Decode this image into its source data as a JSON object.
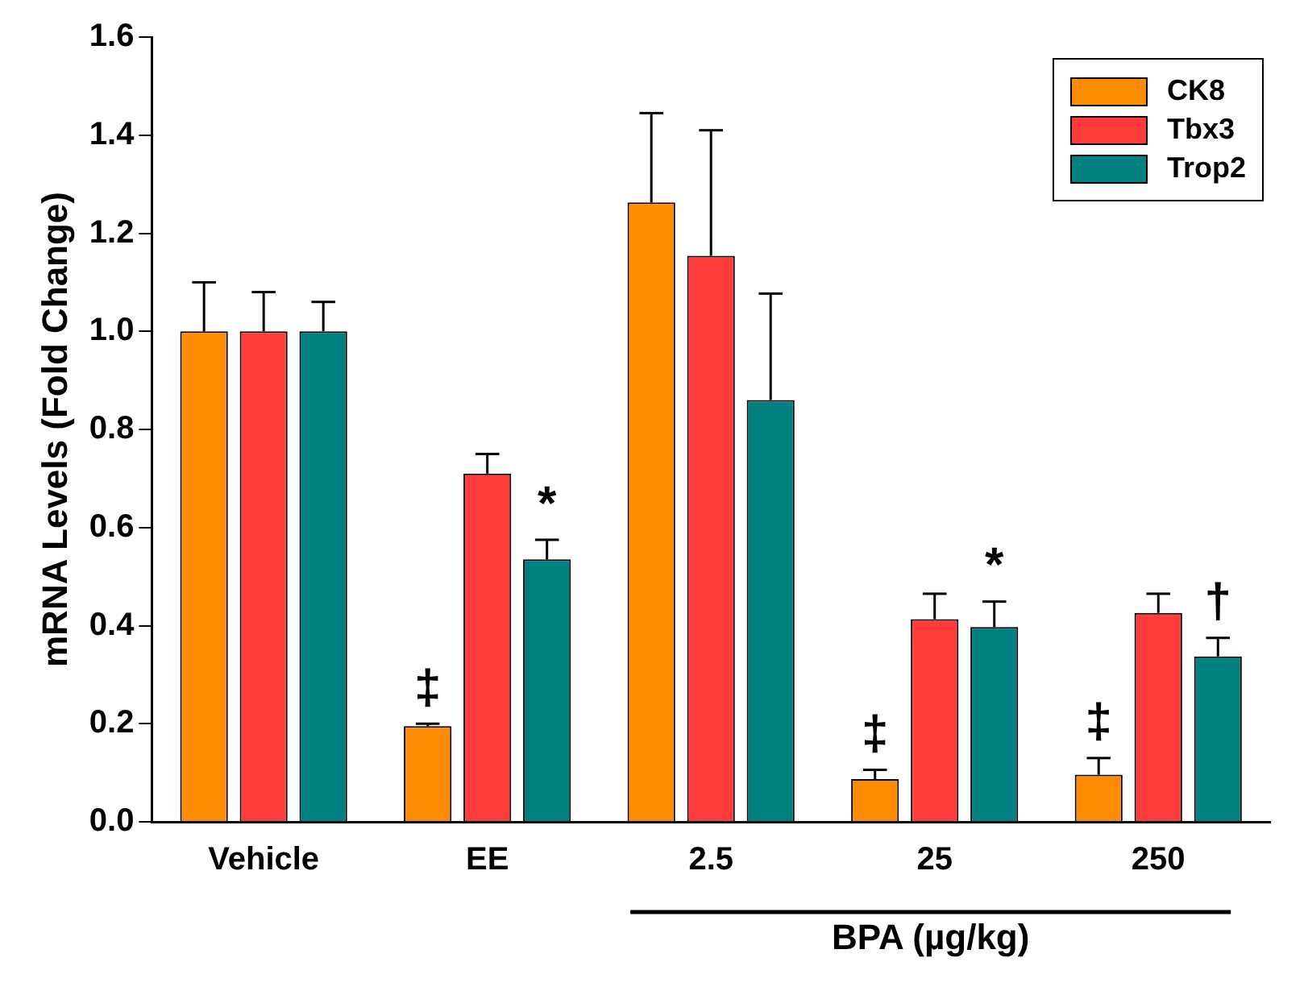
{
  "chart_data": {
    "type": "bar",
    "ylabel": "mRNA Levels (Fold Change)",
    "categories": [
      "Vehicle",
      "EE",
      "2.5",
      "25",
      "250"
    ],
    "series": [
      {
        "name": "CK8",
        "color": "#ff8c00",
        "values": [
          1.0,
          0.195,
          1.263,
          0.087,
          0.096
        ],
        "errors": [
          [
            1.0,
            1.1
          ],
          [
            0.195,
            0.2
          ],
          [
            1.263,
            1.445
          ],
          [
            0.087,
            0.106
          ],
          [
            0.096,
            0.13
          ]
        ]
      },
      {
        "name": "Tbx3",
        "color": "#ff3c3c",
        "values": [
          1.0,
          0.71,
          1.154,
          0.413,
          0.426
        ],
        "errors": [
          [
            1.0,
            1.08
          ],
          [
            0.71,
            0.75
          ],
          [
            1.154,
            1.41
          ],
          [
            0.413,
            0.465
          ],
          [
            0.426,
            0.465
          ]
        ]
      },
      {
        "name": "Trop2",
        "color": "#008080",
        "values": [
          1.0,
          0.535,
          0.86,
          0.397,
          0.337
        ],
        "errors": [
          [
            1.0,
            1.06
          ],
          [
            0.535,
            0.575
          ],
          [
            0.86,
            1.077
          ],
          [
            0.397,
            0.449
          ],
          [
            0.337,
            0.375
          ]
        ]
      }
    ],
    "ylim": [
      0,
      1.6
    ],
    "yticks": [
      {
        "value": 0,
        "label": "0.0"
      },
      {
        "value": 0.2,
        "label": "0.2"
      },
      {
        "value": 0.4,
        "label": "0.4"
      },
      {
        "value": 0.6,
        "label": "0.6"
      },
      {
        "value": 0.8,
        "label": "0.8"
      },
      {
        "value": 1.0,
        "label": "1.0"
      },
      {
        "value": 1.2,
        "label": "1.2"
      },
      {
        "value": 1.4,
        "label": "1.4"
      },
      {
        "value": 1.6,
        "label": "1.6"
      }
    ],
    "grid": false,
    "legend": "top right",
    "annotations": [
      "‡",
      "*",
      "‡",
      "*",
      "‡",
      "†",
      "BPA (µg/kg)"
    ]
  }
}
